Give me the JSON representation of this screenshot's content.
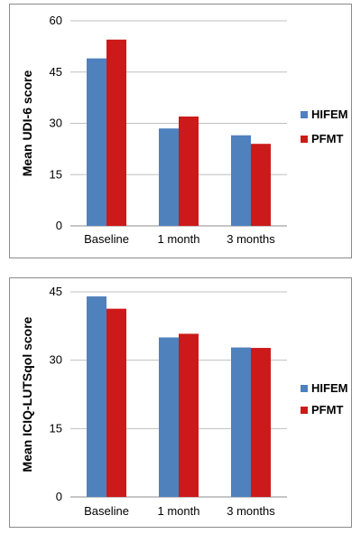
{
  "chart_data": [
    {
      "type": "bar",
      "title": "",
      "xlabel": "",
      "ylabel": "Mean UDI-6 score",
      "categories": [
        "Baseline",
        "1 month",
        "3 months"
      ],
      "series": [
        {
          "name": "HIFEM",
          "color": "#4f81bd",
          "values": [
            49,
            28.5,
            26.5
          ]
        },
        {
          "name": "PFMT",
          "color": "#cc1a1a",
          "values": [
            54.5,
            32,
            24
          ]
        }
      ],
      "ylim": [
        0,
        60
      ],
      "yticks": [
        "0",
        "15",
        "30",
        "45",
        "60"
      ],
      "grid": true,
      "legend": "right"
    },
    {
      "type": "bar",
      "title": "",
      "xlabel": "",
      "ylabel": "Mean ICIQ-LUTSqol score",
      "categories": [
        "Baseline",
        "1 month",
        "3 months"
      ],
      "series": [
        {
          "name": "HIFEM",
          "color": "#4f81bd",
          "values": [
            44,
            35,
            32.8
          ]
        },
        {
          "name": "PFMT",
          "color": "#cc1a1a",
          "values": [
            41.3,
            35.8,
            32.7
          ]
        }
      ],
      "ylim": [
        0,
        45
      ],
      "yticks": [
        "0",
        "15",
        "30",
        "45"
      ],
      "grid": true,
      "legend": "right"
    }
  ]
}
